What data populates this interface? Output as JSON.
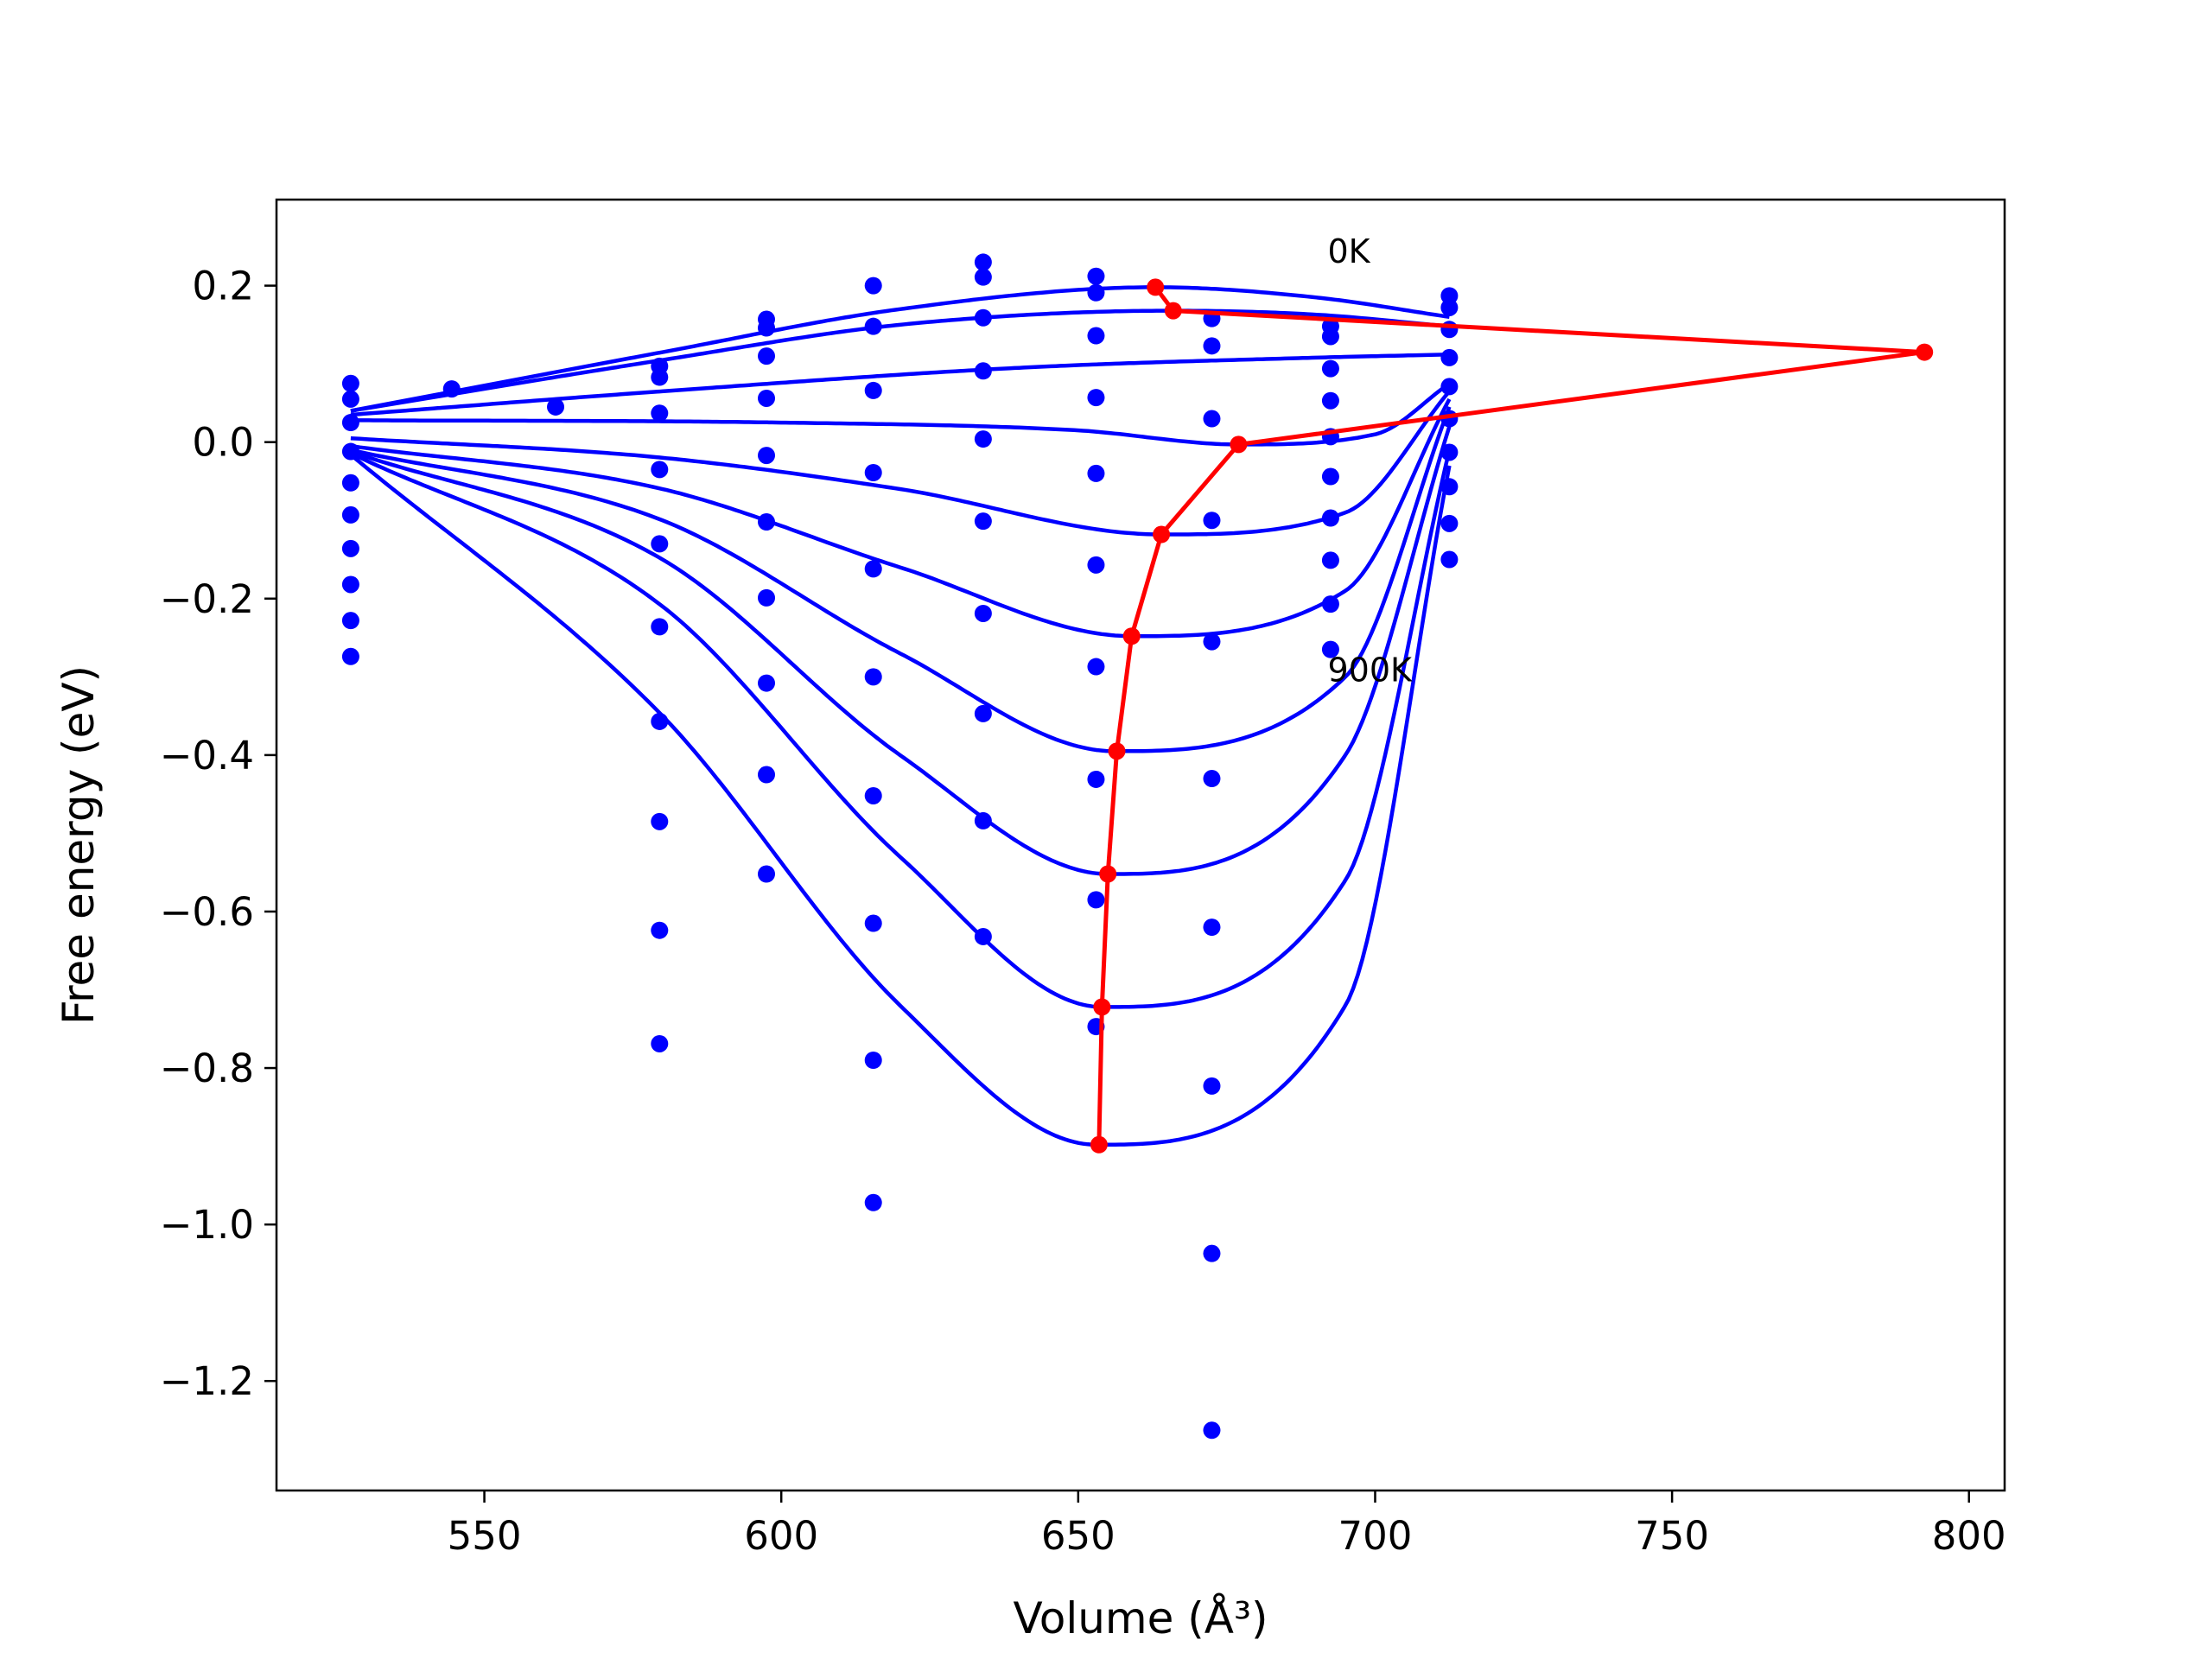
{
  "chart_data": {
    "type": "scatter",
    "xlabel": "Volume (Å³)",
    "ylabel": "Free energy (eV)",
    "xlim": [
      515,
      806
    ],
    "ylim": [
      -1.34,
      0.31
    ],
    "xticks": [
      550,
      600,
      650,
      700,
      750,
      800
    ],
    "yticks": [
      0.2,
      0.0,
      -0.2,
      -0.4,
      -0.6,
      -0.8,
      -1.0,
      -1.2
    ],
    "grid": false,
    "annotations": [
      {
        "text": "0K",
        "x": 692,
        "y": 0.245
      },
      {
        "text": "900K",
        "x": 692,
        "y": -0.29
      }
    ],
    "colors": {
      "data_points": "#0000ff",
      "fit_curves": "#0000ff",
      "minimum_path": "#ff0000",
      "axes": "#000000"
    },
    "curve_x_range": [
      527.5,
      712.5
    ],
    "data_points": [
      {
        "x": 527.5,
        "y": 0.075
      },
      {
        "x": 527.5,
        "y": 0.055
      },
      {
        "x": 527.5,
        "y": 0.025
      },
      {
        "x": 527.5,
        "y": -0.012
      },
      {
        "x": 527.5,
        "y": -0.052
      },
      {
        "x": 527.5,
        "y": -0.093
      },
      {
        "x": 527.5,
        "y": -0.136
      },
      {
        "x": 527.5,
        "y": -0.182
      },
      {
        "x": 527.5,
        "y": -0.228
      },
      {
        "x": 527.5,
        "y": -0.274
      },
      {
        "x": 544.5,
        "y": 0.068
      },
      {
        "x": 562.0,
        "y": 0.045
      },
      {
        "x": 579.5,
        "y": 0.097
      },
      {
        "x": 579.5,
        "y": 0.083
      },
      {
        "x": 579.5,
        "y": 0.037
      },
      {
        "x": 579.5,
        "y": -0.035
      },
      {
        "x": 579.5,
        "y": -0.13
      },
      {
        "x": 579.5,
        "y": -0.236
      },
      {
        "x": 579.5,
        "y": -0.357
      },
      {
        "x": 579.5,
        "y": -0.485
      },
      {
        "x": 579.5,
        "y": -0.624
      },
      {
        "x": 579.5,
        "y": -0.769
      },
      {
        "x": 597.5,
        "y": 0.157
      },
      {
        "x": 597.5,
        "y": 0.146
      },
      {
        "x": 597.5,
        "y": 0.11
      },
      {
        "x": 597.5,
        "y": 0.056
      },
      {
        "x": 597.5,
        "y": -0.017
      },
      {
        "x": 597.5,
        "y": -0.102
      },
      {
        "x": 597.5,
        "y": -0.199
      },
      {
        "x": 597.5,
        "y": -0.308
      },
      {
        "x": 597.5,
        "y": -0.425
      },
      {
        "x": 597.5,
        "y": -0.552
      },
      {
        "x": 615.5,
        "y": 0.2
      },
      {
        "x": 615.5,
        "y": 0.148
      },
      {
        "x": 615.5,
        "y": 0.066
      },
      {
        "x": 615.5,
        "y": -0.039
      },
      {
        "x": 615.5,
        "y": -0.162
      },
      {
        "x": 615.5,
        "y": -0.3
      },
      {
        "x": 615.5,
        "y": -0.452
      },
      {
        "x": 615.5,
        "y": -0.615
      },
      {
        "x": 615.5,
        "y": -0.79
      },
      {
        "x": 615.5,
        "y": -0.972
      },
      {
        "x": 634.0,
        "y": 0.23
      },
      {
        "x": 634.0,
        "y": 0.211
      },
      {
        "x": 634.0,
        "y": 0.159
      },
      {
        "x": 634.0,
        "y": 0.091
      },
      {
        "x": 634.0,
        "y": 0.004
      },
      {
        "x": 634.0,
        "y": -0.101
      },
      {
        "x": 634.0,
        "y": -0.219
      },
      {
        "x": 634.0,
        "y": -0.347
      },
      {
        "x": 634.0,
        "y": -0.484
      },
      {
        "x": 634.0,
        "y": -0.632
      },
      {
        "x": 653.0,
        "y": 0.212
      },
      {
        "x": 653.0,
        "y": 0.191
      },
      {
        "x": 653.0,
        "y": 0.136
      },
      {
        "x": 653.0,
        "y": 0.057
      },
      {
        "x": 653.0,
        "y": -0.04
      },
      {
        "x": 653.0,
        "y": -0.157
      },
      {
        "x": 653.0,
        "y": -0.287
      },
      {
        "x": 653.0,
        "y": -0.431
      },
      {
        "x": 653.0,
        "y": -0.585
      },
      {
        "x": 653.0,
        "y": -0.747
      },
      {
        "x": 672.5,
        "y": 0.158
      },
      {
        "x": 672.5,
        "y": 0.123
      },
      {
        "x": 672.5,
        "y": 0.03
      },
      {
        "x": 672.5,
        "y": -0.1
      },
      {
        "x": 672.5,
        "y": -0.255
      },
      {
        "x": 672.5,
        "y": -0.43
      },
      {
        "x": 672.5,
        "y": -0.62
      },
      {
        "x": 672.5,
        "y": -0.823
      },
      {
        "x": 672.5,
        "y": -1.037
      },
      {
        "x": 672.5,
        "y": -1.263
      },
      {
        "x": 692.5,
        "y": 0.148
      },
      {
        "x": 692.5,
        "y": 0.135
      },
      {
        "x": 692.5,
        "y": 0.094
      },
      {
        "x": 692.5,
        "y": 0.053
      },
      {
        "x": 692.5,
        "y": 0.007
      },
      {
        "x": 692.5,
        "y": -0.044
      },
      {
        "x": 692.5,
        "y": -0.097
      },
      {
        "x": 692.5,
        "y": -0.151
      },
      {
        "x": 692.5,
        "y": -0.207
      },
      {
        "x": 692.5,
        "y": -0.265
      },
      {
        "x": 712.5,
        "y": 0.187
      },
      {
        "x": 712.5,
        "y": 0.172
      },
      {
        "x": 712.5,
        "y": 0.144
      },
      {
        "x": 712.5,
        "y": 0.108
      },
      {
        "x": 712.5,
        "y": 0.071
      },
      {
        "x": 712.5,
        "y": 0.03
      },
      {
        "x": 712.5,
        "y": -0.013
      },
      {
        "x": 712.5,
        "y": -0.057
      },
      {
        "x": 712.5,
        "y": -0.104
      },
      {
        "x": 712.5,
        "y": -0.15
      }
    ],
    "fit_curves": [
      {
        "points": [
          [
            527.5,
            0.04
          ],
          [
            580,
            0.115
          ],
          [
            620,
            0.17
          ],
          [
            663,
            0.198
          ],
          [
            690,
            0.185
          ],
          [
            712.5,
            0.16
          ]
        ]
      },
      {
        "points": [
          [
            527.5,
            0.04
          ],
          [
            580,
            0.105
          ],
          [
            620,
            0.15
          ],
          [
            666,
            0.168
          ],
          [
            690,
            0.163
          ],
          [
            712.5,
            0.148
          ]
        ]
      },
      {
        "points": [
          [
            527.5,
            0.035
          ],
          [
            580,
            0.065
          ],
          [
            640,
            0.095
          ],
          [
            690,
            0.108
          ],
          [
            712.5,
            0.112
          ]
        ]
      },
      {
        "points": [
          [
            527.5,
            0.028
          ],
          [
            600,
            0.025
          ],
          [
            650,
            0.015
          ],
          [
            677,
            -0.003
          ],
          [
            700,
            0.01
          ],
          [
            712.5,
            0.075
          ]
        ]
      },
      {
        "points": [
          [
            527.5,
            0.005
          ],
          [
            580,
            -0.02
          ],
          [
            620,
            -0.06
          ],
          [
            664,
            -0.118
          ],
          [
            695,
            -0.09
          ],
          [
            712.5,
            0.065
          ]
        ]
      },
      {
        "points": [
          [
            527.5,
            -0.005
          ],
          [
            580,
            -0.06
          ],
          [
            620,
            -0.16
          ],
          [
            659,
            -0.248
          ],
          [
            695,
            -0.19
          ],
          [
            712.5,
            0.055
          ]
        ]
      },
      {
        "points": [
          [
            527.5,
            -0.01
          ],
          [
            580,
            -0.1
          ],
          [
            620,
            -0.27
          ],
          [
            656,
            -0.395
          ],
          [
            695,
            -0.3
          ],
          [
            712.5,
            0.045
          ]
        ]
      },
      {
        "points": [
          [
            527.5,
            -0.012
          ],
          [
            580,
            -0.15
          ],
          [
            620,
            -0.4
          ],
          [
            655,
            -0.552
          ],
          [
            695,
            -0.4
          ],
          [
            712.5,
            0.02
          ]
        ]
      },
      {
        "points": [
          [
            527.5,
            -0.014
          ],
          [
            580,
            -0.21
          ],
          [
            620,
            -0.53
          ],
          [
            654,
            -0.722
          ],
          [
            695,
            -0.56
          ],
          [
            712.5,
            -0.01
          ]
        ]
      },
      {
        "points": [
          [
            527.5,
            -0.016
          ],
          [
            580,
            -0.35
          ],
          [
            620,
            -0.72
          ],
          [
            653,
            -0.898
          ],
          [
            695,
            -0.72
          ],
          [
            712.5,
            -0.03
          ]
        ]
      }
    ],
    "minimum_path": [
      {
        "x": 663.0,
        "y": 0.198
      },
      {
        "x": 666.0,
        "y": 0.168
      },
      {
        "x": 792.5,
        "y": 0.115
      },
      {
        "x": 677.0,
        "y": -0.003
      },
      {
        "x": 664.0,
        "y": -0.118
      },
      {
        "x": 659.0,
        "y": -0.248
      },
      {
        "x": 656.5,
        "y": -0.395
      },
      {
        "x": 655.0,
        "y": -0.552
      },
      {
        "x": 654.0,
        "y": -0.722
      },
      {
        "x": 653.5,
        "y": -0.898
      }
    ]
  }
}
